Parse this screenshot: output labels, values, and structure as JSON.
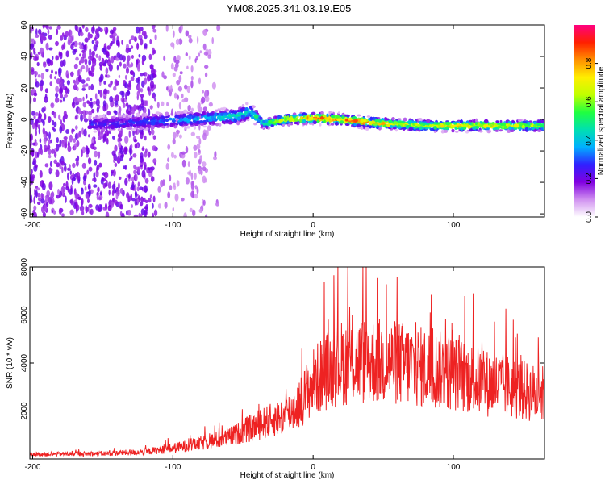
{
  "figure": {
    "title": "YM08.2025.341.03.19.E05"
  },
  "chart_data": [
    {
      "type": "heatmap",
      "xlabel": "Height of straight line (km)",
      "ylabel": "Frequency (Hz)",
      "xlim": [
        -202,
        165
      ],
      "ylim": [
        -62,
        60
      ],
      "xticks": [
        -200,
        -100,
        0,
        100
      ],
      "yticks": [
        60,
        40,
        20,
        0,
        -20,
        -40,
        -60
      ],
      "colorbar": {
        "label": "Normalized spectral amplitude",
        "range": [
          0,
          1
        ],
        "ticks": [
          0.0,
          0.2,
          0.4,
          0.6,
          0.8
        ],
        "colors": [
          "#ffffff",
          "#d090f0",
          "#8000e0",
          "#3020ff",
          "#00b0ff",
          "#00e0b0",
          "#20ff40",
          "#c0ff00",
          "#ffee00",
          "#ff9000",
          "#ff2000",
          "#ff0080"
        ]
      },
      "center_track": {
        "x": [
          -150,
          -130,
          -110,
          -90,
          -70,
          -55,
          -45,
          -35,
          -20,
          0,
          20,
          40,
          60,
          80,
          100,
          120,
          140,
          160
        ],
        "freq": [
          -3,
          -2,
          -1,
          0,
          1,
          2,
          5,
          -3,
          0,
          1,
          0,
          -2,
          -3,
          -4,
          -4,
          -4,
          -4,
          -4
        ],
        "peak_amplitude": [
          0.3,
          0.3,
          0.35,
          0.4,
          0.45,
          0.5,
          0.5,
          0.55,
          0.75,
          0.9,
          0.95,
          0.9,
          0.8,
          0.75,
          0.85,
          0.8,
          0.75,
          0.7
        ]
      }
    },
    {
      "type": "line",
      "xlabel": "Height of straight line (km)",
      "ylabel": "SNR (10 * v/v)",
      "xlim": [
        -202,
        165
      ],
      "ylim": [
        0,
        8000
      ],
      "xticks": [
        -200,
        -100,
        0,
        100
      ],
      "yticks": [
        8000,
        6000,
        4000,
        2000
      ],
      "series": [
        {
          "name": "SNR",
          "color": "#ee2222",
          "envelope_x": [
            -202,
            -150,
            -120,
            -100,
            -80,
            -60,
            -40,
            -20,
            -10,
            0,
            10,
            20,
            40,
            60,
            80,
            100,
            120,
            140,
            160
          ],
          "envelope_mean": [
            200,
            220,
            300,
            450,
            650,
            900,
            1400,
            1800,
            2300,
            3200,
            3700,
            4000,
            4100,
            4000,
            3800,
            3600,
            3200,
            3000,
            2700
          ]
        }
      ]
    }
  ]
}
